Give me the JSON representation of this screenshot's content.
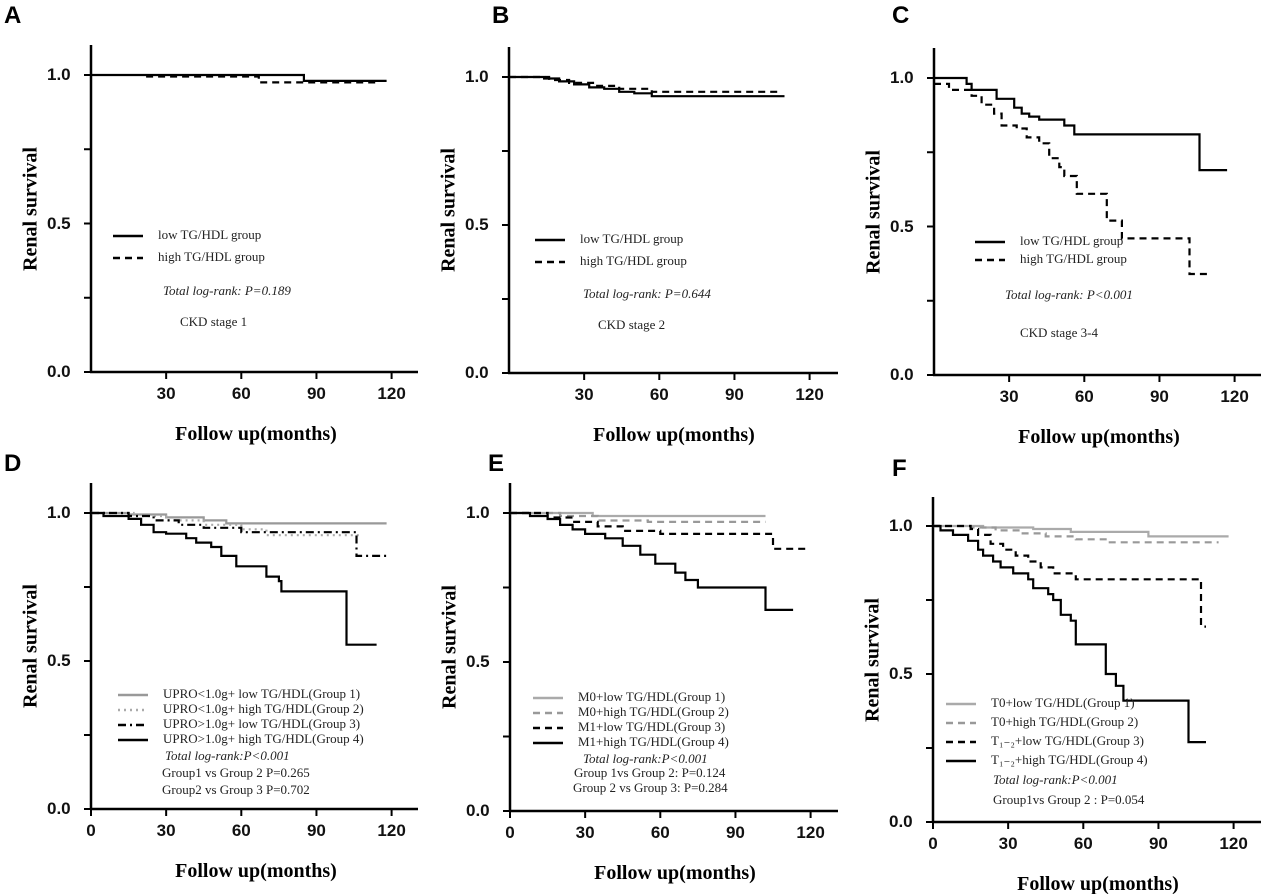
{
  "chart_data": [
    {
      "type": "line",
      "panel": "A",
      "xlabel": "Follow up(months)",
      "ylabel": "Renal survival",
      "xlim": [
        0,
        120
      ],
      "ylim": [
        0,
        1.1
      ],
      "xticks": [
        "30",
        "60",
        "90",
        "120"
      ],
      "xtick_values": [
        30,
        60,
        90,
        120
      ],
      "yticks": [
        "0.0",
        "0.5",
        "1.0"
      ],
      "ytick_values": [
        0,
        0.5,
        1.0
      ],
      "series": [
        {
          "name": "low TG/HDL group",
          "style": "solid",
          "color": "#000000",
          "points": [
            [
              0,
              1
            ],
            [
              85,
              0.98
            ],
            [
              118,
              0.98
            ]
          ]
        },
        {
          "name": "high TG/HDL group",
          "style": "dashed",
          "color": "#000000",
          "points": [
            [
              22,
              0.995
            ],
            [
              67,
              0.975
            ],
            [
              114,
              0.975
            ]
          ]
        }
      ],
      "annotations": [
        "Total log-rank: P=0.189",
        "CKD stage 1"
      ]
    },
    {
      "type": "line",
      "panel": "B",
      "xlabel": "Follow up(months)",
      "ylabel": "Renal survival",
      "xlim": [
        0,
        120
      ],
      "ylim": [
        0,
        1.1
      ],
      "xticks": [
        "30",
        "60",
        "90",
        "120"
      ],
      "xtick_values": [
        30,
        60,
        90,
        120
      ],
      "yticks": [
        "0.0",
        "0.5",
        "1.0"
      ],
      "ytick_values": [
        0,
        0.5,
        1.0
      ],
      "series": [
        {
          "name": "low TG/HDL group",
          "style": "solid",
          "color": "#000000",
          "points": [
            [
              0,
              1
            ],
            [
              14,
              0.995
            ],
            [
              20,
              0.985
            ],
            [
              26,
              0.975
            ],
            [
              32,
              0.965
            ],
            [
              38,
              0.96
            ],
            [
              44,
              0.95
            ],
            [
              50,
              0.945
            ],
            [
              57,
              0.935
            ],
            [
              110,
              0.935
            ]
          ]
        },
        {
          "name": "high TG/HDL group",
          "style": "dashed",
          "color": "#000000",
          "points": [
            [
              0,
              1
            ],
            [
              16,
              0.99
            ],
            [
              24,
              0.98
            ],
            [
              34,
              0.97
            ],
            [
              44,
              0.96
            ],
            [
              57,
              0.95
            ],
            [
              108,
              0.95
            ]
          ]
        }
      ],
      "annotations": [
        "Total log-rank: P=0.644",
        "CKD stage 2"
      ]
    },
    {
      "type": "line",
      "panel": "C",
      "xlabel": "Follow up(months)",
      "ylabel": "Renal survival",
      "xlim": [
        0,
        120
      ],
      "ylim": [
        0,
        1.1
      ],
      "xticks": [
        "30",
        "60",
        "90",
        "120"
      ],
      "xtick_values": [
        30,
        60,
        90,
        120
      ],
      "yticks": [
        "0.0",
        "0.5",
        "1.0"
      ],
      "ytick_values": [
        0,
        0.5,
        1.0
      ],
      "series": [
        {
          "name": "low TG/HDL group",
          "style": "solid",
          "color": "#000000",
          "points": [
            [
              0,
              1
            ],
            [
              13,
              0.98
            ],
            [
              15,
              0.96
            ],
            [
              25,
              0.93
            ],
            [
              32,
              0.9
            ],
            [
              35,
              0.88
            ],
            [
              38,
              0.87
            ],
            [
              42,
              0.86
            ],
            [
              52,
              0.84
            ],
            [
              56,
              0.81
            ],
            [
              106,
              0.69
            ],
            [
              117,
              0.69
            ]
          ]
        },
        {
          "name": "high TG/HDL group",
          "style": "dashed",
          "color": "#000000",
          "points": [
            [
              0,
              0.98
            ],
            [
              6,
              0.96
            ],
            [
              15,
              0.94
            ],
            [
              19,
              0.91
            ],
            [
              24,
              0.88
            ],
            [
              27,
              0.84
            ],
            [
              33,
              0.83
            ],
            [
              37,
              0.8
            ],
            [
              42,
              0.78
            ],
            [
              46,
              0.73
            ],
            [
              50,
              0.7
            ],
            [
              52,
              0.67
            ],
            [
              57,
              0.61
            ],
            [
              69,
              0.52
            ],
            [
              75,
              0.46
            ],
            [
              102,
              0.34
            ],
            [
              109,
              0.34
            ]
          ]
        }
      ],
      "annotations": [
        "Total log-rank: P<0.001",
        "CKD stage 3-4"
      ]
    },
    {
      "type": "line",
      "panel": "D",
      "xlabel": "Follow up(months)",
      "ylabel": "Renal survival",
      "xlim": [
        0,
        120
      ],
      "ylim": [
        0,
        1.1
      ],
      "xticks": [
        "0",
        "30",
        "60",
        "90",
        "120"
      ],
      "xtick_values": [
        0,
        30,
        60,
        90,
        120
      ],
      "yticks": [
        "0.0",
        "0.5",
        "1.0"
      ],
      "ytick_values": [
        0,
        0.5,
        1.0
      ],
      "series": [
        {
          "name": "UPRO<1.0g+ low TG/HDL(Group 1)",
          "style": "solid",
          "color": "#999999",
          "points": [
            [
              0,
              1
            ],
            [
              15,
              0.995
            ],
            [
              30,
              0.985
            ],
            [
              45,
              0.975
            ],
            [
              54,
              0.965
            ],
            [
              118,
              0.965
            ]
          ]
        },
        {
          "name": "UPRO<1.0g+ high TG/HDL(Group 2)",
          "style": "dotted",
          "color": "#aaaaaa",
          "points": [
            [
              0,
              1
            ],
            [
              17,
              0.99
            ],
            [
              30,
              0.975
            ],
            [
              45,
              0.96
            ],
            [
              60,
              0.945
            ],
            [
              70,
              0.925
            ],
            [
              108,
              0.925
            ]
          ]
        },
        {
          "name": "UPRO>1.0g+ low TG/HDL(Group 3)",
          "style": "dashdot",
          "color": "#000000",
          "points": [
            [
              0,
              1
            ],
            [
              15,
              0.99
            ],
            [
              25,
              0.975
            ],
            [
              35,
              0.96
            ],
            [
              45,
              0.95
            ],
            [
              60,
              0.935
            ],
            [
              106,
              0.855
            ],
            [
              118,
              0.855
            ]
          ]
        },
        {
          "name": "UPRO>1.0g+ high TG/HDL(Group 4)",
          "style": "solid",
          "color": "#000000",
          "points": [
            [
              0,
              1
            ],
            [
              5,
              0.99
            ],
            [
              15,
              0.98
            ],
            [
              20,
              0.96
            ],
            [
              25,
              0.935
            ],
            [
              30,
              0.93
            ],
            [
              38,
              0.915
            ],
            [
              42,
              0.9
            ],
            [
              48,
              0.885
            ],
            [
              52,
              0.855
            ],
            [
              58,
              0.82
            ],
            [
              70,
              0.785
            ],
            [
              75,
              0.77
            ],
            [
              76,
              0.735
            ],
            [
              102,
              0.555
            ],
            [
              114,
              0.555
            ]
          ]
        }
      ],
      "annotations": [
        "Total log-rank:P<0.001",
        "Group1 vs Group 2 P=0.265",
        "Group2 vs Group 3 P=0.702"
      ]
    },
    {
      "type": "line",
      "panel": "E",
      "xlabel": "Follow up(months)",
      "ylabel": "Renal survival",
      "xlim": [
        0,
        120
      ],
      "ylim": [
        0,
        1.1
      ],
      "xticks": [
        "0",
        "30",
        "60",
        "90",
        "120"
      ],
      "xtick_values": [
        0,
        30,
        60,
        90,
        120
      ],
      "yticks": [
        "0.0",
        "0.5",
        "1.0"
      ],
      "ytick_values": [
        0,
        0.5,
        1.0
      ],
      "series": [
        {
          "name": "M0+low TG/HDL(Group 1)",
          "style": "solid",
          "color": "#aaaaaa",
          "points": [
            [
              0,
              1
            ],
            [
              33,
              0.99
            ],
            [
              102,
              0.99
            ]
          ]
        },
        {
          "name": "M0+high TG/HDL(Group 2)",
          "style": "dashed",
          "color": "#999999",
          "points": [
            [
              0,
              1
            ],
            [
              20,
              0.99
            ],
            [
              35,
              0.975
            ],
            [
              55,
              0.97
            ],
            [
              102,
              0.97
            ]
          ]
        },
        {
          "name": "M1+low TG/HDL(Group 3)",
          "style": "dashed",
          "color": "#000000",
          "points": [
            [
              0,
              1
            ],
            [
              15,
              0.985
            ],
            [
              25,
              0.97
            ],
            [
              35,
              0.955
            ],
            [
              45,
              0.94
            ],
            [
              60,
              0.93
            ],
            [
              105,
              0.88
            ],
            [
              118,
              0.88
            ]
          ]
        },
        {
          "name": "M1+high TG/HDL(Group 4)",
          "style": "solid",
          "color": "#000000",
          "points": [
            [
              0,
              1
            ],
            [
              8,
              0.99
            ],
            [
              15,
              0.98
            ],
            [
              20,
              0.96
            ],
            [
              25,
              0.945
            ],
            [
              30,
              0.93
            ],
            [
              38,
              0.915
            ],
            [
              45,
              0.89
            ],
            [
              52,
              0.86
            ],
            [
              58,
              0.83
            ],
            [
              66,
              0.8
            ],
            [
              70,
              0.775
            ],
            [
              75,
              0.75
            ],
            [
              102,
              0.675
            ],
            [
              113,
              0.675
            ]
          ]
        }
      ],
      "annotations": [
        "Total log-rank:P<0.001",
        "Group 1vs Group 2: P=0.124",
        "Group 2 vs Group 3: P=0.284"
      ]
    },
    {
      "type": "line",
      "panel": "F",
      "xlabel": "Follow up(months)",
      "ylabel": "Renal survival",
      "xlim": [
        0,
        120
      ],
      "ylim": [
        0,
        1.1
      ],
      "xticks": [
        "0",
        "30",
        "60",
        "90",
        "120"
      ],
      "xtick_values": [
        0,
        30,
        60,
        90,
        120
      ],
      "yticks": [
        "0.0",
        "0.5",
        "1.0"
      ],
      "ytick_values": [
        0,
        0.5,
        1.0
      ],
      "series": [
        {
          "name": "T0+low TG/HDL(Group 1)",
          "style": "solid",
          "color": "#aaaaaa",
          "points": [
            [
              0,
              1
            ],
            [
              20,
              0.995
            ],
            [
              40,
              0.99
            ],
            [
              55,
              0.98
            ],
            [
              86,
              0.965
            ],
            [
              118,
              0.965
            ]
          ]
        },
        {
          "name": "T0+high TG/HDL(Group 2)",
          "style": "dashed",
          "color": "#999999",
          "points": [
            [
              0,
              1
            ],
            [
              15,
              0.995
            ],
            [
              25,
              0.985
            ],
            [
              35,
              0.975
            ],
            [
              45,
              0.965
            ],
            [
              57,
              0.955
            ],
            [
              70,
              0.945
            ],
            [
              114,
              0.945
            ]
          ]
        },
        {
          "name": "T₁₋₂+low TG/HDL(Group 3)",
          "style": "dashed",
          "color": "#000000",
          "points": [
            [
              0,
              1
            ],
            [
              15,
              0.99
            ],
            [
              18,
              0.97
            ],
            [
              23,
              0.94
            ],
            [
              28,
              0.92
            ],
            [
              33,
              0.9
            ],
            [
              38,
              0.88
            ],
            [
              43,
              0.86
            ],
            [
              48,
              0.84
            ],
            [
              57,
              0.82
            ],
            [
              107,
              0.66
            ],
            [
              109,
              0.66
            ]
          ]
        },
        {
          "name": "T₁₋₂+high TG/HDL(Group 4)",
          "style": "solid",
          "color": "#000000",
          "points": [
            [
              0,
              1
            ],
            [
              3,
              0.985
            ],
            [
              8,
              0.97
            ],
            [
              14,
              0.95
            ],
            [
              18,
              0.92
            ],
            [
              20,
              0.9
            ],
            [
              24,
              0.88
            ],
            [
              27,
              0.86
            ],
            [
              32,
              0.84
            ],
            [
              38,
              0.82
            ],
            [
              40,
              0.79
            ],
            [
              46,
              0.77
            ],
            [
              48,
              0.75
            ],
            [
              51,
              0.7
            ],
            [
              55,
              0.68
            ],
            [
              57,
              0.6
            ],
            [
              69,
              0.5
            ],
            [
              73,
              0.46
            ],
            [
              76,
              0.41
            ],
            [
              102,
              0.27
            ],
            [
              109,
              0.27
            ]
          ]
        }
      ],
      "annotations": [
        "Total log-rank:P<0.001",
        "Group1vs Group 2 : P=0.054"
      ]
    }
  ]
}
